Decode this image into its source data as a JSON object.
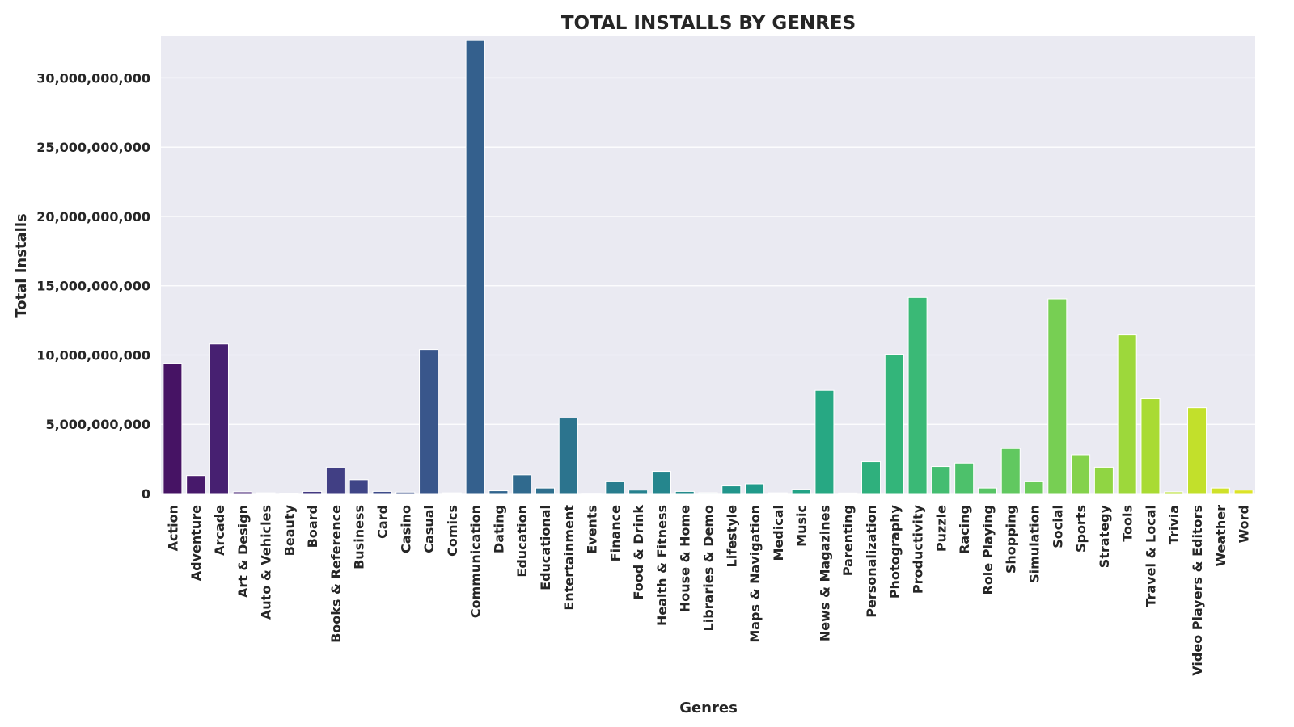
{
  "chart_data": {
    "type": "bar",
    "title": "TOTAL INSTALLS BY GENRES",
    "xlabel": "Genres",
    "ylabel": "Total Installs",
    "ylim": [
      0,
      33000000000
    ],
    "yticks": [
      0,
      5000000000,
      10000000000,
      15000000000,
      20000000000,
      25000000000,
      30000000000
    ],
    "ytick_labels": [
      "0",
      "5,000,000,000",
      "10,000,000,000",
      "15,000,000,000",
      "20,000,000,000",
      "25,000,000,000",
      "30,000,000,000"
    ],
    "grid": true,
    "palette": "viridis",
    "background": "#eaeaf2",
    "categories": [
      "Action",
      "Adventure",
      "Arcade",
      "Art & Design",
      "Auto & Vehicles",
      "Beauty",
      "Board",
      "Books & Reference",
      "Business",
      "Card",
      "Casino",
      "Casual",
      "Comics",
      "Communication",
      "Dating",
      "Education",
      "Educational",
      "Entertainment",
      "Events",
      "Finance",
      "Food & Drink",
      "Health & Fitness",
      "House & Home",
      "Libraries & Demo",
      "Lifestyle",
      "Maps & Navigation",
      "Medical",
      "Music",
      "News & Magazines",
      "Parenting",
      "Personalization",
      "Photography",
      "Productivity",
      "Puzzle",
      "Racing",
      "Role Playing",
      "Shopping",
      "Simulation",
      "Social",
      "Sports",
      "Strategy",
      "Tools",
      "Travel & Local",
      "Trivia",
      "Video Players & Editors",
      "Weather",
      "Word"
    ],
    "values": [
      9400000000,
      1300000000,
      10800000000,
      120000000,
      50000000,
      30000000,
      150000000,
      1900000000,
      1000000000,
      150000000,
      100000000,
      10400000000,
      50000000,
      32700000000,
      200000000,
      1350000000,
      400000000,
      5450000000,
      20000000,
      850000000,
      250000000,
      1600000000,
      150000000,
      60000000,
      550000000,
      700000000,
      50000000,
      300000000,
      7450000000,
      40000000,
      2300000000,
      10050000000,
      14150000000,
      1950000000,
      2200000000,
      400000000,
      3250000000,
      850000000,
      14050000000,
      2800000000,
      1900000000,
      11450000000,
      6850000000,
      120000000,
      6200000000,
      400000000,
      250000000
    ]
  }
}
